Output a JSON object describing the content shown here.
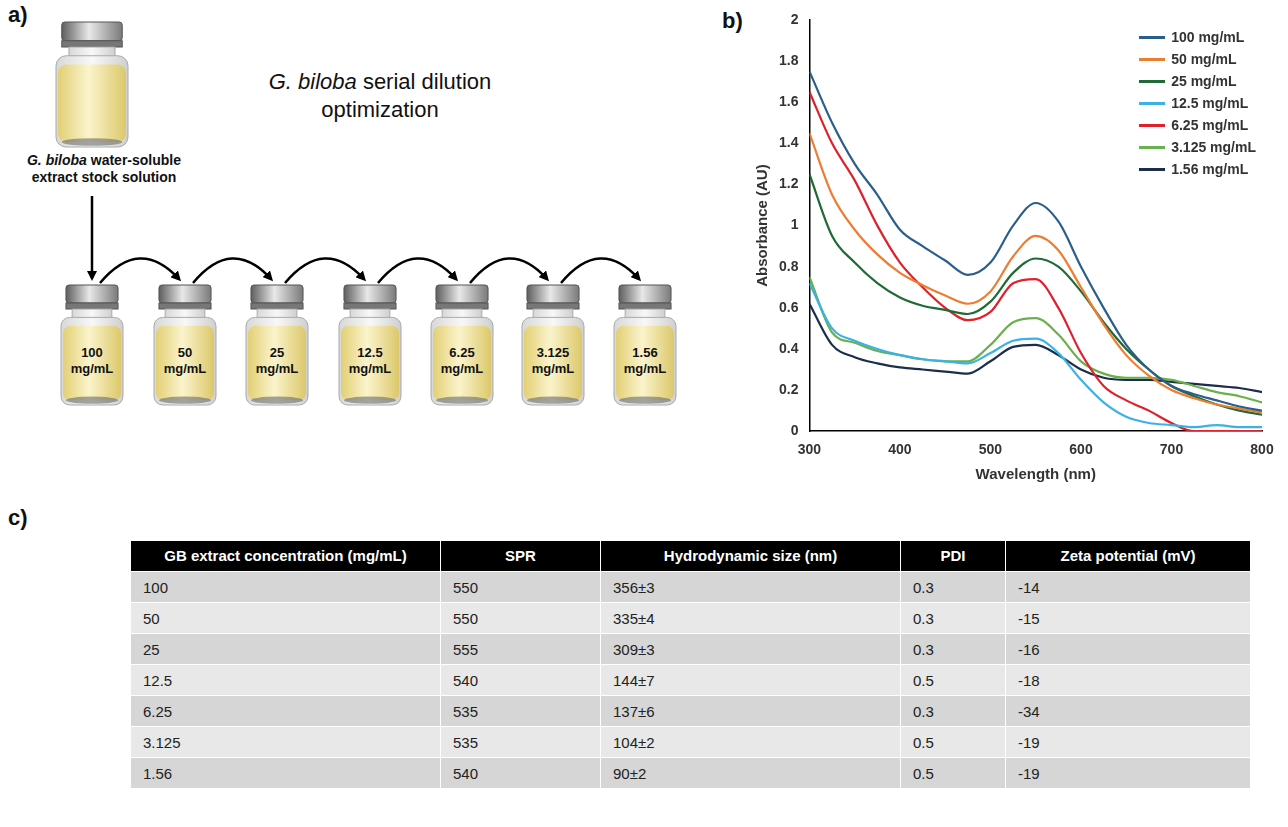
{
  "panel_a": {
    "letter": "a)",
    "title": "G. biloba serial dilution optimization",
    "stock_label": "G. biloba water-soluble extract stock solution",
    "vials": [
      "100 mg/mL",
      "50 mg/mL",
      "25 mg/mL",
      "12.5 mg/mL",
      "6.25 mg/mL",
      "3.125 mg/mL",
      "1.56 mg/mL"
    ]
  },
  "panel_b": {
    "letter": "b)"
  },
  "chart_data": {
    "type": "line",
    "xlabel": "Wavelength (nm)",
    "ylabel": "Absorbance (AU)",
    "xlim": [
      300,
      800
    ],
    "xticks": [
      300,
      400,
      500,
      600,
      700,
      800
    ],
    "ylim": [
      0,
      2
    ],
    "yticks": [
      0,
      0.2,
      0.4,
      0.6,
      0.8,
      1,
      1.2,
      1.4,
      1.6,
      1.8,
      2
    ],
    "grid": false,
    "legend": "upper right",
    "x": [
      300,
      325,
      350,
      375,
      400,
      425,
      450,
      475,
      500,
      525,
      550,
      575,
      600,
      625,
      650,
      675,
      700,
      725,
      750,
      775,
      800
    ],
    "series": [
      {
        "name": "100 mg/mL",
        "color": "#2a5f8c",
        "values": [
          1.75,
          1.5,
          1.3,
          1.15,
          0.98,
          0.9,
          0.83,
          0.76,
          0.82,
          1.0,
          1.11,
          1.02,
          0.8,
          0.6,
          0.42,
          0.3,
          0.22,
          0.18,
          0.15,
          0.12,
          0.1
        ]
      },
      {
        "name": "50 mg/mL",
        "color": "#ed7d31",
        "values": [
          1.45,
          1.15,
          0.98,
          0.86,
          0.77,
          0.71,
          0.66,
          0.62,
          0.68,
          0.85,
          0.95,
          0.88,
          0.7,
          0.52,
          0.37,
          0.27,
          0.2,
          0.16,
          0.13,
          0.11,
          0.09
        ]
      },
      {
        "name": "25 mg/mL",
        "color": "#1e6b35",
        "values": [
          1.25,
          0.95,
          0.82,
          0.72,
          0.65,
          0.61,
          0.59,
          0.57,
          0.63,
          0.77,
          0.84,
          0.8,
          0.68,
          0.53,
          0.4,
          0.3,
          0.22,
          0.17,
          0.13,
          0.1,
          0.08
        ]
      },
      {
        "name": "12.5 mg/mL",
        "color": "#3cb1e3",
        "values": [
          0.72,
          0.5,
          0.44,
          0.4,
          0.37,
          0.35,
          0.34,
          0.33,
          0.38,
          0.44,
          0.45,
          0.38,
          0.25,
          0.14,
          0.07,
          0.04,
          0.03,
          0.02,
          0.03,
          0.02,
          0.02
        ]
      },
      {
        "name": "6.25 mg/mL",
        "color": "#e0202a",
        "values": [
          1.65,
          1.4,
          1.22,
          1.0,
          0.82,
          0.7,
          0.6,
          0.54,
          0.58,
          0.72,
          0.74,
          0.6,
          0.38,
          0.22,
          0.15,
          0.1,
          0.04,
          0,
          0,
          0,
          0
        ]
      },
      {
        "name": "3.125 mg/mL",
        "color": "#6ab04c",
        "values": [
          0.75,
          0.48,
          0.43,
          0.39,
          0.37,
          0.35,
          0.34,
          0.34,
          0.42,
          0.53,
          0.55,
          0.47,
          0.34,
          0.28,
          0.26,
          0.26,
          0.25,
          0.22,
          0.19,
          0.17,
          0.14
        ]
      },
      {
        "name": "1.56 mg/mL",
        "color": "#1c2e4a",
        "values": [
          0.62,
          0.42,
          0.36,
          0.33,
          0.31,
          0.3,
          0.29,
          0.28,
          0.34,
          0.41,
          0.42,
          0.37,
          0.3,
          0.26,
          0.25,
          0.25,
          0.24,
          0.23,
          0.22,
          0.21,
          0.19
        ]
      }
    ]
  },
  "panel_c": {
    "letter": "c)",
    "table": {
      "header": [
        "GB extract concentration (mg/mL)",
        "SPR",
        "Hydrodynamic size (nm)",
        "PDI",
        "Zeta potential (mV)"
      ],
      "rows": [
        [
          100,
          550,
          "356±3",
          0.3,
          -14
        ],
        [
          50,
          550,
          "335±4",
          0.3,
          -15
        ],
        [
          25,
          555,
          "309±3",
          0.3,
          -16
        ],
        [
          12.5,
          540,
          "144±7",
          0.5,
          -18
        ],
        [
          6.25,
          535,
          "137±6",
          0.3,
          -34
        ],
        [
          3.125,
          535,
          "104±2",
          0.5,
          -19
        ],
        [
          1.56,
          540,
          "90±2",
          0.5,
          -19
        ]
      ]
    }
  }
}
